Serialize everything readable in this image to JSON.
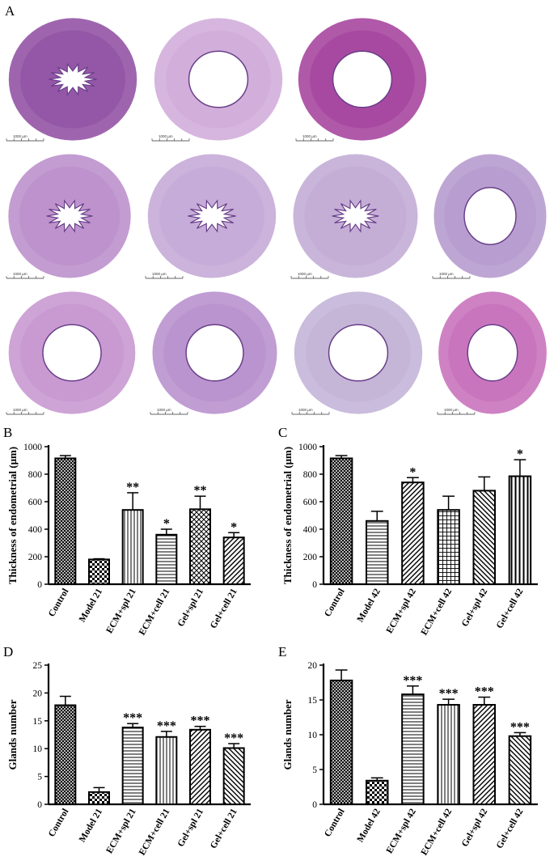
{
  "panel_labels": {
    "A": "A",
    "B": "B",
    "C": "C",
    "D": "D",
    "E": "E"
  },
  "micrographs": {
    "scale_label": "1000 µm",
    "tiles": [
      {
        "tone": "#8d4aa0",
        "lumen": "star"
      },
      {
        "tone": "#cfa9d8",
        "lumen": "ring"
      },
      {
        "tone": "#a23c9a",
        "lumen": "ring"
      },
      {
        "tone": "#b98bc9",
        "lumen": "star"
      },
      {
        "tone": "#c2a6d6",
        "lumen": "star"
      },
      {
        "tone": "#bfa8d4",
        "lumen": "star"
      },
      {
        "tone": "#b397cc",
        "lumen": "ring"
      },
      {
        "tone": "#c593cf",
        "lumen": "ring"
      },
      {
        "tone": "#b58ccb",
        "lumen": "ring"
      },
      {
        "tone": "#c1b0d6",
        "lumen": "ring"
      },
      {
        "tone": "#c56cb9",
        "lumen": "ring"
      }
    ]
  },
  "chart_data": [
    {
      "id": "B",
      "type": "bar",
      "ylabel": "Thickness of endometrial (μm)",
      "ylim": [
        0,
        1000
      ],
      "yticks": [
        0,
        200,
        400,
        600,
        800,
        1000
      ],
      "categories": [
        "Control",
        "Model 21",
        "ECM+spl 21",
        "ECM+cell 21",
        "Gel+spl 21",
        "Gel+cell 21"
      ],
      "values": [
        915,
        180,
        540,
        360,
        545,
        340
      ],
      "errors": [
        20,
        5,
        125,
        40,
        95,
        35
      ],
      "significance": [
        "",
        "",
        "**",
        "*",
        "**",
        "*"
      ],
      "patterns": [
        "crosshatch",
        "checker",
        "vertical",
        "hlines",
        "diagcross",
        "bdiag"
      ]
    },
    {
      "id": "C",
      "type": "bar",
      "ylabel": "Thickness of endometrial (μm)",
      "ylim": [
        0,
        1000
      ],
      "yticks": [
        0,
        200,
        400,
        600,
        800,
        1000
      ],
      "categories": [
        "Control",
        "Model 42",
        "ECM+spl 42",
        "ECM+cell 42",
        "Gel+spl 42",
        "Gel+cell 42"
      ],
      "values": [
        915,
        460,
        740,
        540,
        680,
        785
      ],
      "errors": [
        20,
        70,
        35,
        100,
        100,
        120
      ],
      "significance": [
        "",
        "",
        "*",
        "",
        "",
        "*"
      ],
      "patterns": [
        "crosshatch",
        "hlines",
        "bdiag",
        "grid",
        "fdiag",
        "vbold"
      ]
    },
    {
      "id": "D",
      "type": "bar",
      "ylabel": "Glands number",
      "ylim": [
        0,
        25
      ],
      "yticks": [
        0,
        5,
        10,
        15,
        20,
        25
      ],
      "categories": [
        "Control",
        "Model 21",
        "ECM+spl 21",
        "ECM+cell 21",
        "Gel+spl 21",
        "Gel+cell 21"
      ],
      "values": [
        17.8,
        2.2,
        13.8,
        12.1,
        13.4,
        10.1
      ],
      "errors": [
        1.6,
        0.8,
        0.7,
        1.0,
        0.6,
        0.8
      ],
      "significance": [
        "",
        "",
        "***",
        "***",
        "***",
        "***"
      ],
      "patterns": [
        "crosshatch",
        "checker",
        "hlines",
        "vertical",
        "bdiag",
        "fdiag"
      ]
    },
    {
      "id": "E",
      "type": "bar",
      "ylabel": "Glands number",
      "ylim": [
        0,
        20
      ],
      "yticks": [
        0,
        5,
        10,
        15,
        20
      ],
      "categories": [
        "Control",
        "Model 42",
        "ECM+spl 42",
        "ECM+cell 42",
        "Gel+spl 42",
        "Gel+cell 42"
      ],
      "values": [
        17.8,
        3.4,
        15.8,
        14.3,
        14.3,
        9.8
      ],
      "errors": [
        1.5,
        0.4,
        1.2,
        0.8,
        1.1,
        0.5
      ],
      "significance": [
        "",
        "",
        "***",
        "***",
        "***",
        "***"
      ],
      "patterns": [
        "crosshatch",
        "checker",
        "hlines",
        "vertical",
        "bdiag",
        "fdiag"
      ]
    }
  ]
}
